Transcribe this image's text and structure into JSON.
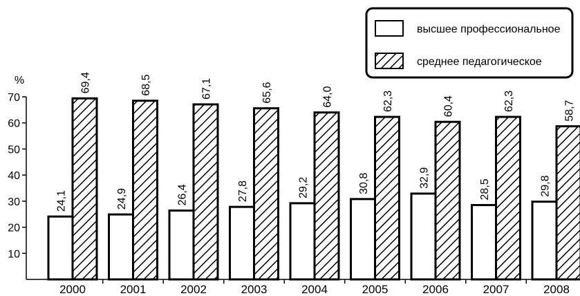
{
  "chart_data": {
    "type": "bar",
    "ylabel": "%",
    "ylim": [
      0,
      70
    ],
    "yticks": [
      10,
      20,
      30,
      40,
      50,
      60,
      70
    ],
    "categories": [
      "2000",
      "2001",
      "2002",
      "2003",
      "2004",
      "2005",
      "2006",
      "2007",
      "2008"
    ],
    "series": [
      {
        "name": "высшее профессиональное",
        "pattern": "solid-white",
        "values": [
          24.1,
          24.9,
          26.4,
          27.8,
          29.2,
          30.8,
          32.9,
          28.5,
          29.8
        ],
        "labels": [
          "24,1",
          "24,9",
          "26,4",
          "27,8",
          "29,2",
          "30,8",
          "32,9",
          "28,5",
          "29,8"
        ]
      },
      {
        "name": "среднее педагогическое",
        "pattern": "diagonal-hatch",
        "values": [
          69.4,
          68.5,
          67.1,
          65.6,
          64.0,
          62.3,
          60.4,
          62.3,
          58.7
        ],
        "labels": [
          "69,4",
          "68,5",
          "67,1",
          "65,6",
          "64,0",
          "62,3",
          "60,4",
          "62,3",
          "58,7"
        ]
      }
    ],
    "legend_position": "top-right",
    "grid": false
  }
}
